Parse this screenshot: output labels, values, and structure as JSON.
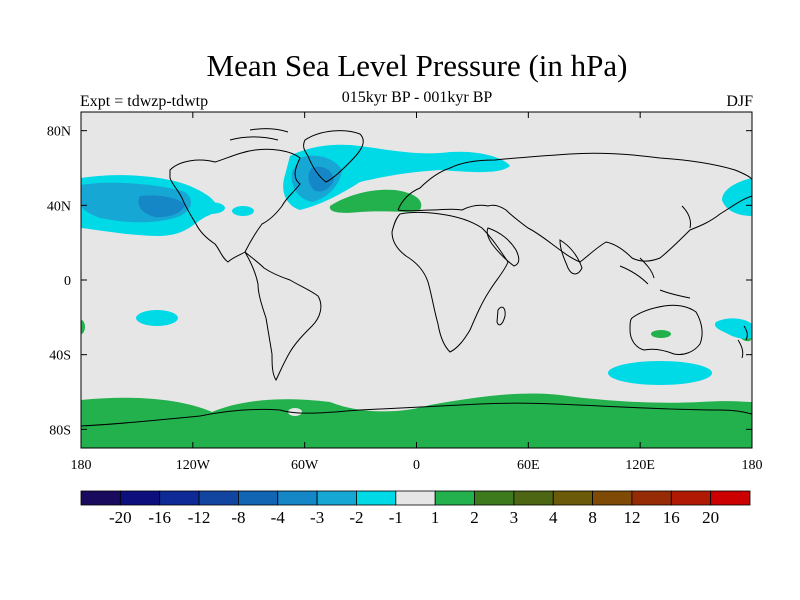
{
  "title": "Mean Sea Level Pressure (in hPa)",
  "subtitle": "015kyr BP - 001kyr BP",
  "left_label": "Expt = tdwzp-tdwtp",
  "right_label": "DJF",
  "map": {
    "lon_range": [
      -180,
      180
    ],
    "lat_range": [
      -90,
      90
    ],
    "background_color": "#e6e6e6",
    "coastline_color": "#000000",
    "x_ticks": [
      {
        "lon": -180,
        "label": "180"
      },
      {
        "lon": -120,
        "label": "120W"
      },
      {
        "lon": -60,
        "label": "60W"
      },
      {
        "lon": 0,
        "label": "0"
      },
      {
        "lon": 60,
        "label": "60E"
      },
      {
        "lon": 120,
        "label": "120E"
      },
      {
        "lon": 180,
        "label": "180"
      }
    ],
    "y_ticks": [
      {
        "lat": 80,
        "label": "80N"
      },
      {
        "lat": 40,
        "label": "40N"
      },
      {
        "lat": 0,
        "label": "0"
      },
      {
        "lat": -40,
        "label": "40S"
      },
      {
        "lat": -80,
        "label": "80S"
      }
    ]
  },
  "colorbar": {
    "colors": [
      "#1a0a5e",
      "#0d0f7c",
      "#0d2a96",
      "#11459f",
      "#1265b2",
      "#1586c6",
      "#16a7d4",
      "#00d9e6",
      "#e6e6e6",
      "#22b14c",
      "#3d7a1e",
      "#4d6613",
      "#6a5a0a",
      "#7e4a06",
      "#952c05",
      "#b01a04",
      "#cc0000"
    ],
    "labels": [
      "-20",
      "-16",
      "-12",
      "-8",
      "-4",
      "-3",
      "-2",
      "-1",
      "1",
      "2",
      "3",
      "4",
      "8",
      "12",
      "16",
      "20"
    ]
  }
}
